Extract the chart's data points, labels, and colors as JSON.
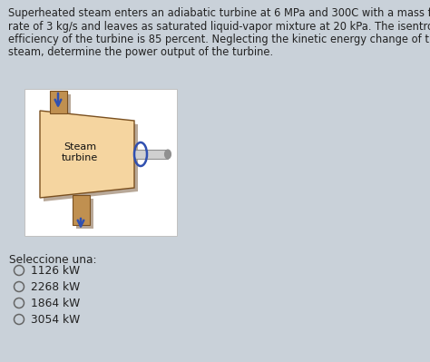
{
  "background_color": "#c9d1d9",
  "paragraph_lines": [
    "Superheated steam enters an adiabatic turbine at 6 MPa and 300C with a mass flow",
    "rate of 3 kg/s and leaves as saturated liquid-vapor mixture at 20 kPa. The isentropic",
    "efficiency of the turbine is 85 percent. Neglecting the kinetic energy change of the",
    "steam, determine the power output of the turbine."
  ],
  "turbine_label": "Steam\nturbine",
  "select_label": "Seleccione una:",
  "options": [
    "1126 kW",
    "2268 kW",
    "1864 kW",
    "3054 kW"
  ],
  "box_bg": "#ffffff",
  "box_border": "#c0c0c0",
  "turbine_color": "#f5d5a0",
  "turbine_edge": "#7a5020",
  "turbine_shadow": "#b8a898",
  "pipe_color": "#c09050",
  "pipe_edge": "#7a5020",
  "arrow_color": "#3050b0",
  "shaft_color_light": "#d0d0d0",
  "shaft_color_dark": "#909090",
  "ellipse_color": "#3050b0",
  "text_color": "#222222",
  "para_fontsize": 8.3,
  "label_fontsize": 8.0,
  "select_fontsize": 8.8,
  "option_fontsize": 8.8
}
